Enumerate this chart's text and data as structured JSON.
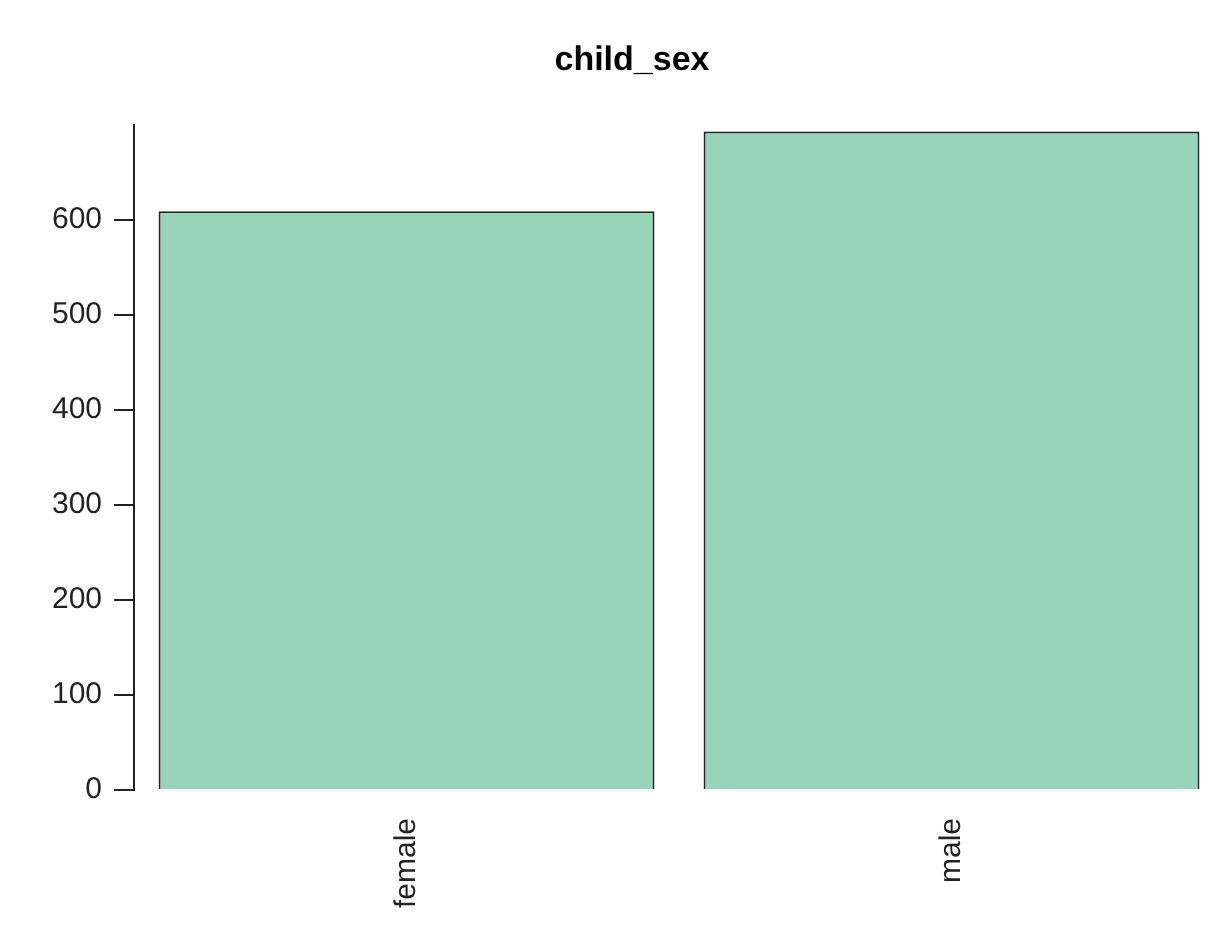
{
  "chart_data": {
    "type": "bar",
    "title": "child_sex",
    "categories": [
      "female",
      "male"
    ],
    "values": [
      609,
      693
    ],
    "color": "#98d5b8",
    "ylim": [
      0,
      700
    ],
    "yticks": [
      0,
      100,
      200,
      300,
      400,
      500,
      600
    ],
    "grid": false,
    "legend": false
  }
}
